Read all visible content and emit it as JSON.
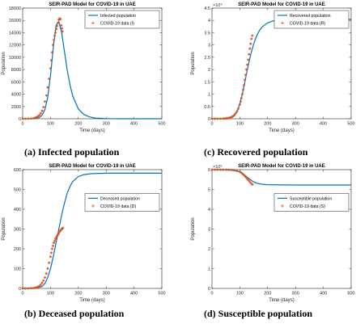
{
  "chart_data": [
    {
      "id": "a",
      "type": "line",
      "title": "SEIR-PAD Model for COVID-19 in UAE",
      "xlabel": "Time (days)",
      "ylabel": "Population",
      "xlim": [
        0,
        500
      ],
      "ylim": [
        0,
        18000
      ],
      "xticks": [
        0,
        100,
        200,
        300,
        400,
        500
      ],
      "yticks": [
        0,
        2000,
        4000,
        6000,
        8000,
        10000,
        12000,
        14000,
        16000,
        18000
      ],
      "ytick_labels": [
        "0",
        "2000",
        "4000",
        "6000",
        "8000",
        "10000",
        "12000",
        "14000",
        "16000",
        "18000"
      ],
      "exponent": "",
      "legend_position": "top-right",
      "caption": "(a) Infected population",
      "model": {
        "name": "Infected population",
        "color": "#0072BD",
        "x": [
          0,
          40,
          60,
          70,
          80,
          90,
          100,
          110,
          120,
          130,
          140,
          150,
          160,
          170,
          180,
          200,
          220,
          240,
          260,
          300,
          350,
          400,
          500
        ],
        "y": [
          0,
          30,
          200,
          600,
          1500,
          3500,
          7000,
          11500,
          15200,
          15800,
          14000,
          11000,
          8000,
          5500,
          3700,
          1600,
          700,
          300,
          120,
          25,
          5,
          0,
          0
        ]
      },
      "data": {
        "name": "COVID-19 data (I)",
        "color": "#D95319",
        "x": [
          0,
          10,
          20,
          30,
          40,
          45,
          50,
          55,
          60,
          65,
          70,
          75,
          80,
          85,
          90,
          95,
          100,
          103,
          106,
          109,
          112,
          115,
          118,
          121,
          124,
          127,
          130,
          133,
          136,
          139,
          141,
          143
        ],
        "y": [
          0,
          10,
          20,
          40,
          80,
          150,
          250,
          400,
          600,
          900,
          1300,
          1900,
          2800,
          3800,
          5100,
          6500,
          8200,
          9500,
          10800,
          12000,
          12800,
          13500,
          14000,
          14600,
          15100,
          15600,
          16100,
          16300,
          16200,
          15200,
          14700,
          14200
        ]
      }
    },
    {
      "id": "c",
      "type": "line",
      "title": "SEIR-PAD Model for COVID-19 in UAE",
      "xlabel": "Time (days)",
      "ylabel": "Population",
      "xlim": [
        0,
        500
      ],
      "ylim": [
        0,
        45000
      ],
      "xticks": [
        0,
        100,
        200,
        300,
        400,
        500
      ],
      "yticks": [
        0,
        5000,
        10000,
        15000,
        20000,
        25000,
        30000,
        35000,
        40000,
        45000
      ],
      "ytick_labels": [
        "0",
        "0.5",
        "1",
        "1.5",
        "2",
        "2.5",
        "3",
        "3.5",
        "4",
        "4.5"
      ],
      "exponent": "×10⁴",
      "legend_position": "top-right",
      "caption": "(c) Recovered population",
      "model": {
        "name": "Recovered population",
        "color": "#0072BD",
        "x": [
          0,
          50,
          70,
          80,
          90,
          100,
          110,
          120,
          130,
          140,
          150,
          160,
          170,
          180,
          200,
          220,
          250,
          300,
          350,
          400,
          500
        ],
        "y": [
          0,
          100,
          500,
          1200,
          3000,
          6000,
          10500,
          16000,
          21500,
          26500,
          30500,
          33500,
          35800,
          37300,
          39000,
          39800,
          40200,
          40400,
          40400,
          40400,
          40400
        ]
      },
      "data": {
        "name": "COVID-19 data (R)",
        "color": "#D95319",
        "x": [
          0,
          10,
          20,
          30,
          40,
          45,
          50,
          55,
          60,
          65,
          70,
          75,
          80,
          85,
          90,
          95,
          100,
          103,
          106,
          109,
          112,
          115,
          118,
          121,
          124,
          127,
          130,
          133,
          136,
          139,
          142,
          145
        ],
        "y": [
          0,
          0,
          10,
          20,
          50,
          80,
          120,
          200,
          300,
          450,
          700,
          1000,
          1500,
          2200,
          3000,
          4200,
          5800,
          7000,
          8400,
          10000,
          11800,
          13700,
          15800,
          17800,
          20000,
          22000,
          24000,
          26200,
          28500,
          30500,
          32500,
          33800
        ]
      }
    },
    {
      "id": "b",
      "type": "line",
      "title": "SEIR-PAD Model for COVID-19 in UAE",
      "xlabel": "Time (days)",
      "ylabel": "Population",
      "xlim": [
        0,
        500
      ],
      "ylim": [
        0,
        600
      ],
      "xticks": [
        0,
        100,
        200,
        300,
        400,
        500
      ],
      "yticks": [
        0,
        100,
        200,
        300,
        400,
        500,
        600
      ],
      "ytick_labels": [
        "0",
        "100",
        "200",
        "300",
        "400",
        "500",
        "600"
      ],
      "exponent": "",
      "legend_position": "right",
      "caption": "(b) Deceased population",
      "model": {
        "name": "Deceased population",
        "color": "#0072BD",
        "x": [
          0,
          50,
          70,
          80,
          90,
          100,
          110,
          120,
          130,
          140,
          150,
          160,
          170,
          180,
          200,
          220,
          250,
          300,
          350,
          400,
          500
        ],
        "y": [
          0,
          2,
          10,
          25,
          55,
          100,
          160,
          230,
          300,
          370,
          430,
          480,
          515,
          540,
          565,
          575,
          580,
          582,
          582,
          582,
          582
        ]
      },
      "data": {
        "name": "COVID-19 data (D)",
        "color": "#D95319",
        "x": [
          0,
          10,
          20,
          30,
          40,
          45,
          50,
          55,
          60,
          65,
          70,
          75,
          80,
          85,
          90,
          95,
          100,
          103,
          106,
          109,
          112,
          115,
          118,
          121,
          124,
          127,
          130,
          133,
          136,
          139,
          142,
          145
        ],
        "y": [
          0,
          0,
          0,
          1,
          2,
          3,
          5,
          8,
          12,
          18,
          28,
          40,
          55,
          75,
          100,
          130,
          160,
          180,
          200,
          215,
          230,
          240,
          250,
          258,
          265,
          272,
          280,
          287,
          293,
          298,
          302,
          306
        ]
      }
    },
    {
      "id": "d",
      "type": "line",
      "title": "SEIR-PAD Model for COVID-19 in UAE",
      "xlabel": "Time (days)",
      "ylabel": "Population",
      "xlim": [
        0,
        500
      ],
      "ylim": [
        0,
        6000000
      ],
      "xticks": [
        0,
        100,
        200,
        300,
        400,
        500
      ],
      "yticks": [
        0,
        1000000,
        2000000,
        3000000,
        4000000,
        5000000,
        6000000
      ],
      "ytick_labels": [
        "0",
        "1",
        "2",
        "3",
        "4",
        "5",
        "6"
      ],
      "exponent": "×10⁶",
      "legend_position": "right",
      "caption": "(d) Susceptible population",
      "model": {
        "name": "Susceptible population",
        "color": "#0072BD",
        "x": [
          0,
          50,
          70,
          90,
          100,
          110,
          120,
          130,
          140,
          150,
          160,
          180,
          200,
          250,
          300,
          400,
          500
        ],
        "y": [
          6000000,
          5995000,
          5980000,
          5930000,
          5880000,
          5800000,
          5700000,
          5580000,
          5470000,
          5380000,
          5320000,
          5260000,
          5240000,
          5230000,
          5225000,
          5225000,
          5225000
        ]
      },
      "data": {
        "name": "COVID-19 data (S)",
        "color": "#D95319",
        "x": [
          0,
          10,
          20,
          30,
          40,
          50,
          60,
          70,
          80,
          90,
          100,
          105,
          110,
          115,
          120,
          125,
          130,
          135,
          140,
          145
        ],
        "y": [
          6000000,
          6000000,
          6000000,
          6000000,
          6000000,
          5998000,
          5995000,
          5988000,
          5970000,
          5940000,
          5890000,
          5850000,
          5790000,
          5720000,
          5640000,
          5560000,
          5480000,
          5400000,
          5320000,
          5250000
        ]
      }
    }
  ]
}
